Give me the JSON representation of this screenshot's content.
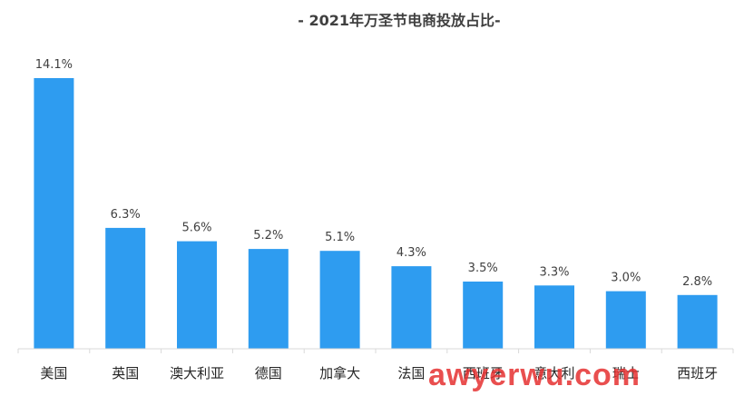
{
  "chart_data": {
    "type": "bar",
    "title": "- 2021年万圣节电商投放占比-",
    "categories": [
      "美国",
      "英国",
      "澳大利亚",
      "德国",
      "加拿大",
      "法国",
      "西班牙",
      "意大利",
      "瑞士",
      "西班牙"
    ],
    "values": [
      14.1,
      6.3,
      5.6,
      5.2,
      5.1,
      4.3,
      3.5,
      3.3,
      3.0,
      2.8
    ],
    "value_labels": [
      "14.1%",
      "6.3%",
      "5.6%",
      "5.2%",
      "5.1%",
      "4.3%",
      "3.5%",
      "3.3%",
      "3.0%",
      "2.8%"
    ],
    "xlabel": "",
    "ylabel": "",
    "ylim": [
      0,
      14.1
    ],
    "grid": false,
    "bar_color": "#2e9cf0"
  },
  "watermark": "awyerwu.com"
}
